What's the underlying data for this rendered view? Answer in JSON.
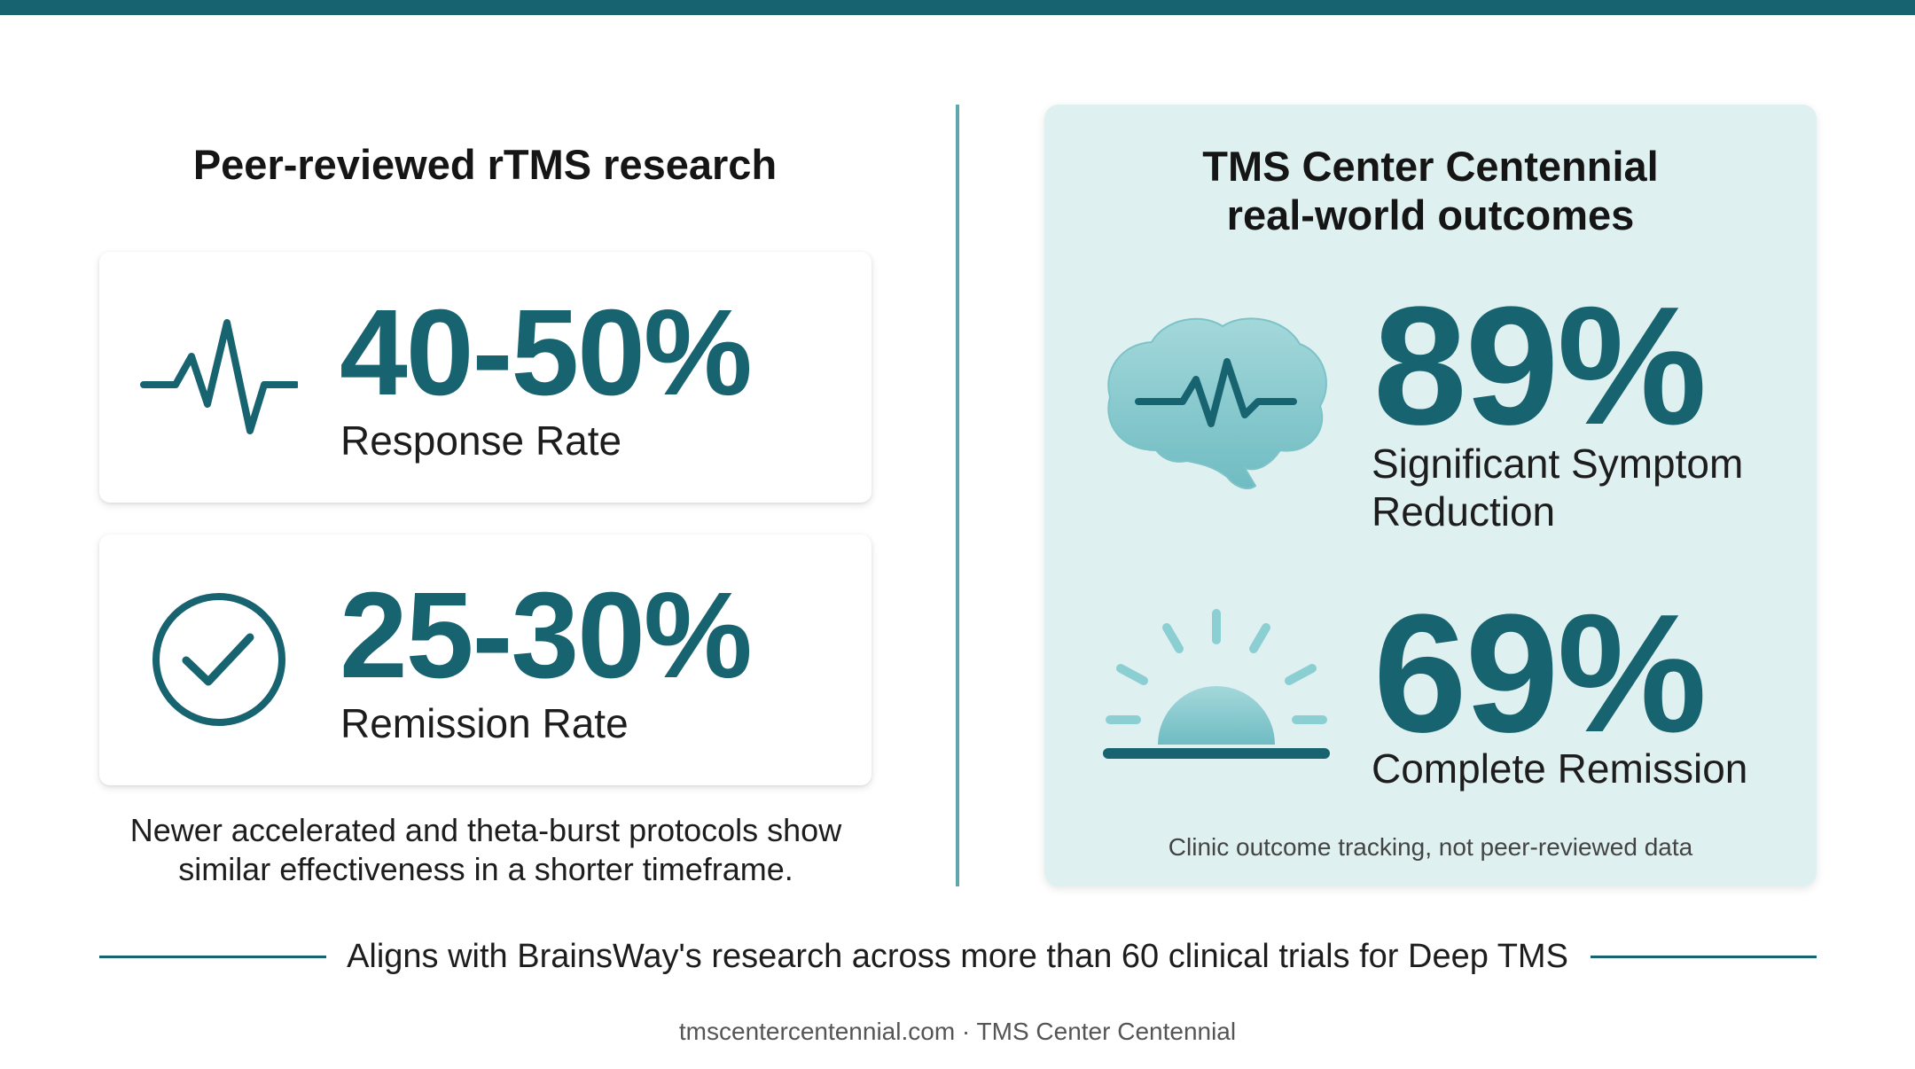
{
  "colors": {
    "accent": "#17636f",
    "panel_background": "#dff0f0",
    "divider": "#5fa7ae"
  },
  "left": {
    "title": "Peer-reviewed rTMS research",
    "cards": [
      {
        "icon": "heartbeat-icon",
        "value": "40-50%",
        "label": "Response Rate"
      },
      {
        "icon": "checkmark-circle-icon",
        "value": "25-30%",
        "label": "Remission Rate"
      }
    ],
    "note": "Newer accelerated and theta-burst protocols show similar effectiveness in a shorter timeframe."
  },
  "right": {
    "title": "TMS Center Centennial real-world outcomes",
    "stats": [
      {
        "icon": "brain-pulse-icon",
        "value": "89%",
        "label": "Significant Symptom Reduction"
      },
      {
        "icon": "sunrise-icon",
        "value": "69%",
        "label": "Complete Remission"
      }
    ],
    "note": "Clinic outcome tracking, not peer-reviewed data"
  },
  "bottom": {
    "statement": "Aligns with BrainsWay's research across more than 60 clinical trials for Deep TMS"
  },
  "footer": {
    "text": "tmscentercentennial.com · TMS Center Centennial"
  }
}
